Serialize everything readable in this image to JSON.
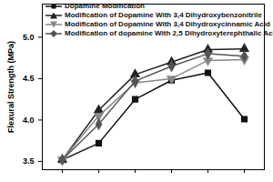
{
  "chart_data": {
    "type": "line",
    "y_label": "Flexural Strength (MPa)",
    "categories": [
      null,
      null,
      null,
      null,
      null,
      null
    ],
    "series": [
      {
        "name": "Dopamine Modification",
        "color": "#111111",
        "marker": "square",
        "values": [
          3.52,
          3.72,
          4.25,
          4.48,
          4.57,
          4.01
        ]
      },
      {
        "name": "Modification of Dopamine With 3,4 Dihydroxybenzonitrile",
        "color": "#222222",
        "marker": "triangle-up",
        "values": [
          3.52,
          4.12,
          4.55,
          4.7,
          4.85,
          4.86
        ]
      },
      {
        "name": "Modification of Dopamine With 3,4 Dihydroxycinnamic Acid",
        "color": "#888888",
        "marker": "triangle-down",
        "values": [
          3.52,
          4.05,
          4.45,
          4.5,
          4.72,
          4.73
        ]
      },
      {
        "name": "Modification of dopamine With 2,5 Dihydroxyterephthalic Acid",
        "color": "#555555",
        "marker": "diamond",
        "values": [
          3.52,
          3.95,
          4.47,
          4.65,
          4.8,
          4.77
        ]
      }
    ],
    "ylim": [
      3.4,
      5.4
    ],
    "yticks": [
      3.5,
      4.0,
      4.5,
      5.0
    ],
    "tick_labels": "y",
    "legend": "top-left"
  }
}
